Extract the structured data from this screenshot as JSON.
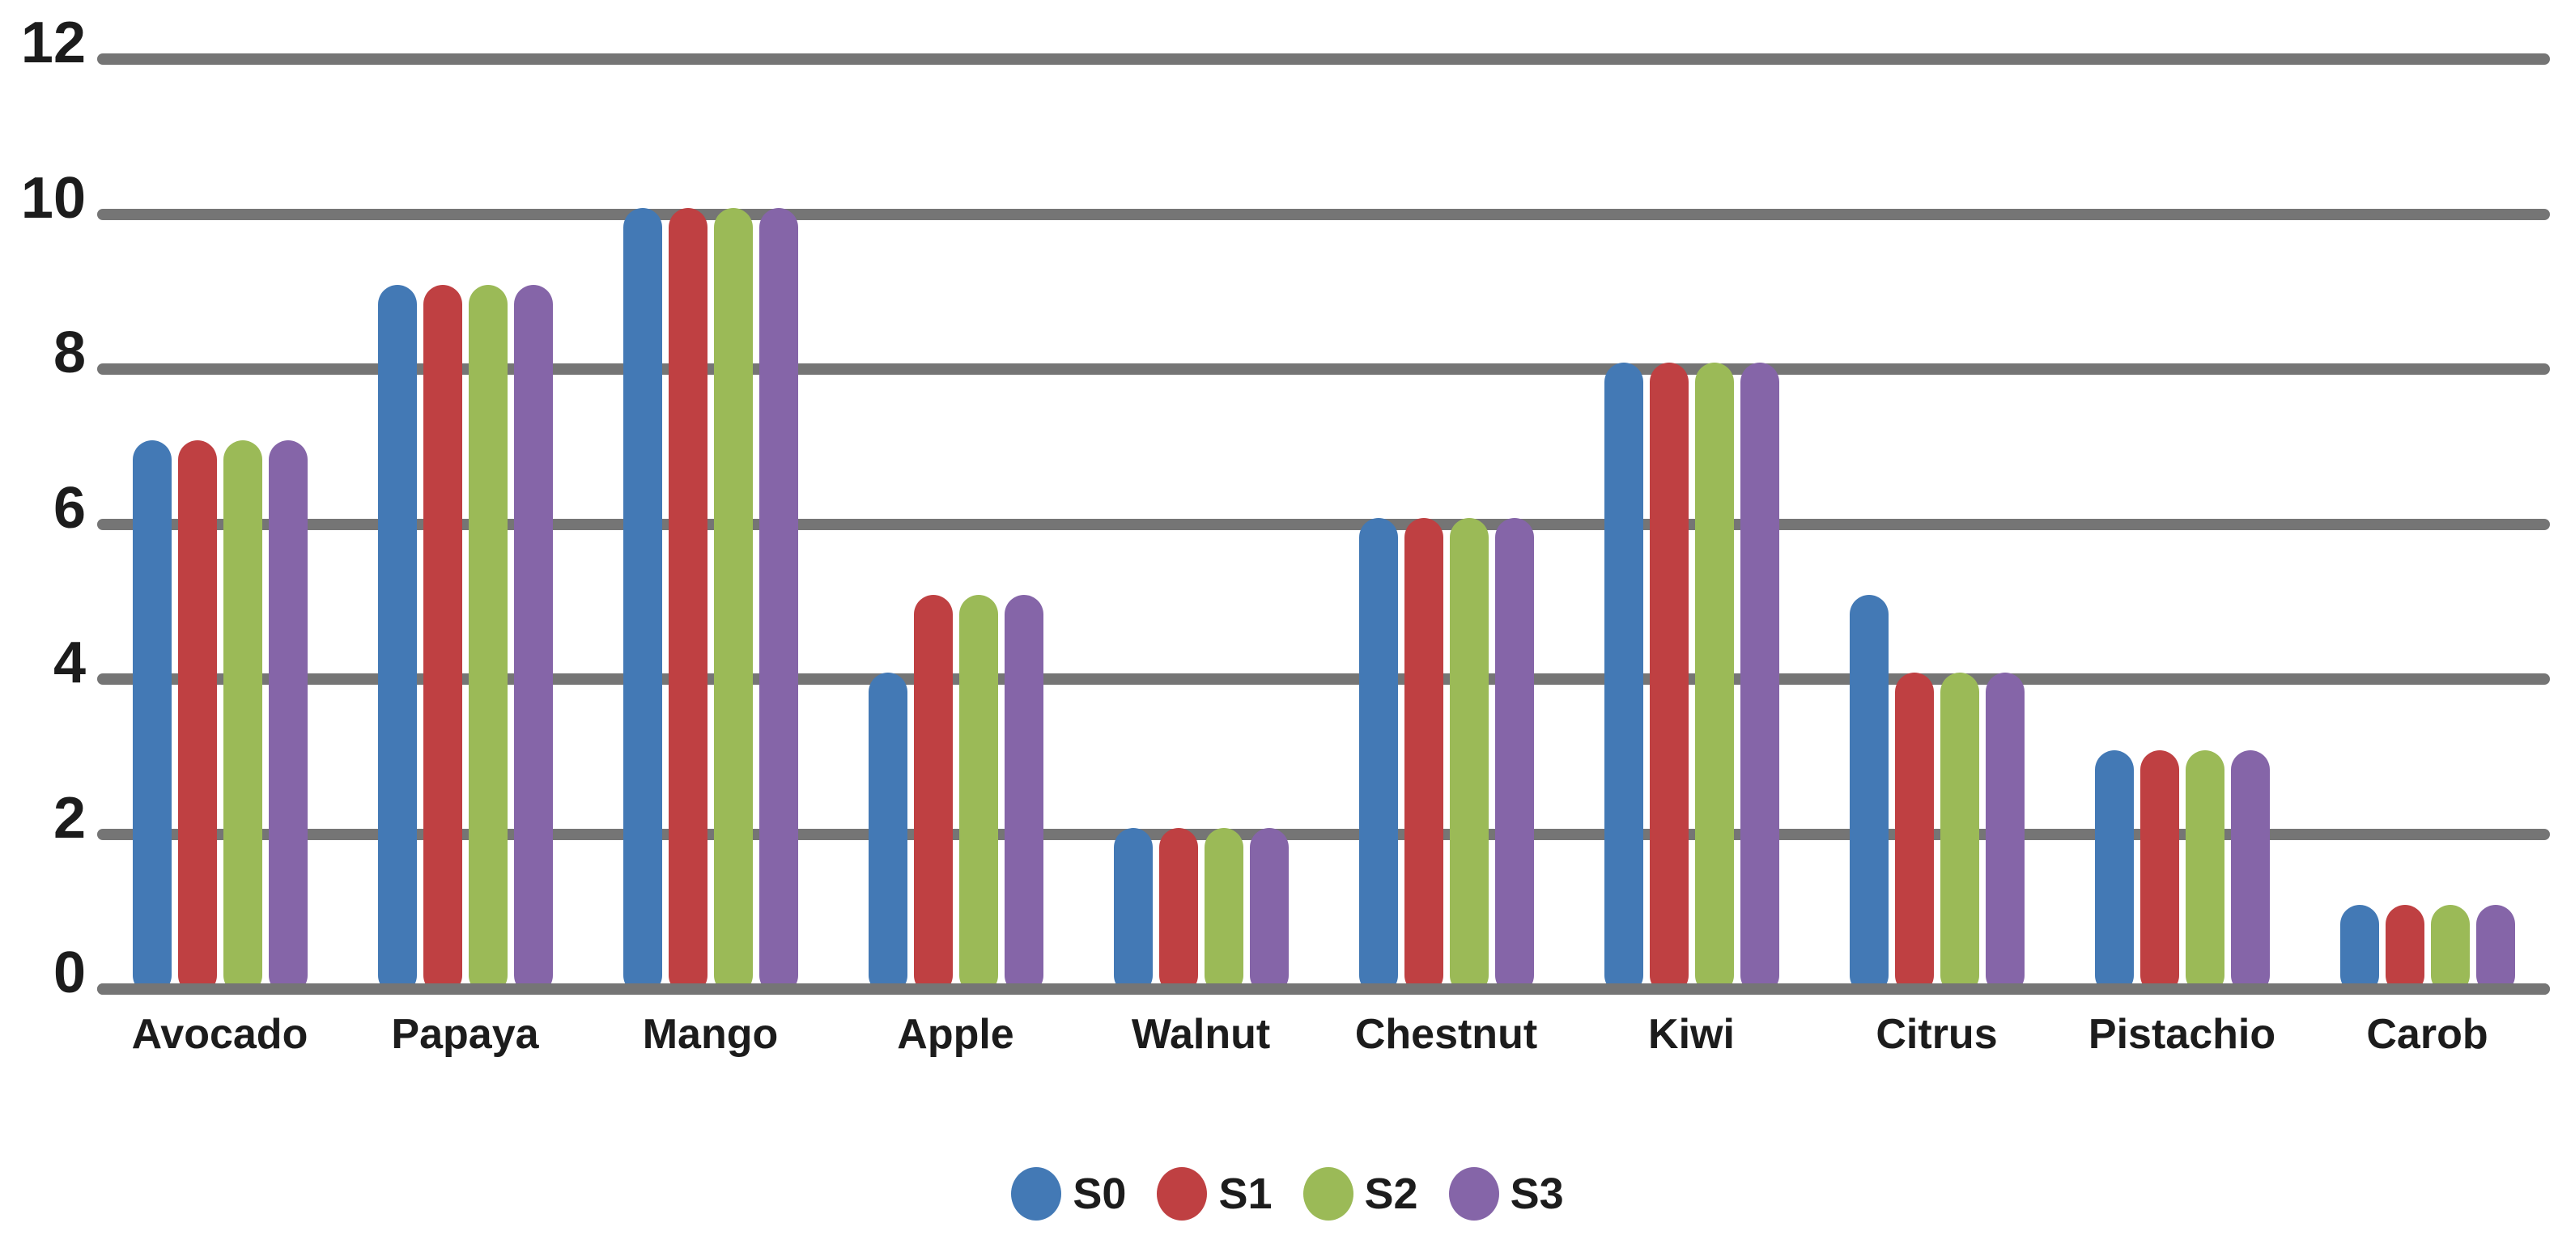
{
  "chart_data": {
    "type": "bar",
    "title": "",
    "xlabel": "",
    "ylabel": "",
    "categories": [
      "Avocado",
      "Papaya",
      "Mango",
      "Apple",
      "Walnut",
      "Chestnut",
      "Kiwi",
      "Citrus",
      "Pistachio",
      "Carob"
    ],
    "series": [
      {
        "name": "S0",
        "color": "#4379B5",
        "values": [
          7,
          9,
          10,
          4,
          2,
          6,
          8,
          5,
          3,
          1
        ]
      },
      {
        "name": "S1",
        "color": "#BF4042",
        "values": [
          7,
          9,
          10,
          5,
          2,
          6,
          8,
          4,
          3,
          1
        ]
      },
      {
        "name": "S2",
        "color": "#9BBA57",
        "values": [
          7,
          9,
          10,
          5,
          2,
          6,
          8,
          4,
          3,
          1
        ]
      },
      {
        "name": "S3",
        "color": "#8565A8",
        "values": [
          7,
          9,
          10,
          5,
          2,
          6,
          8,
          4,
          3,
          1
        ]
      }
    ],
    "ylim": [
      0,
      12
    ],
    "yticks": [
      12,
      10,
      8,
      6,
      4,
      2,
      0
    ],
    "grid": true,
    "gridline_color": "#757575",
    "text_color": "#1c1c1c",
    "background_color": "#ffffff",
    "legend_position": "bottom",
    "legend_marker": "circle"
  }
}
